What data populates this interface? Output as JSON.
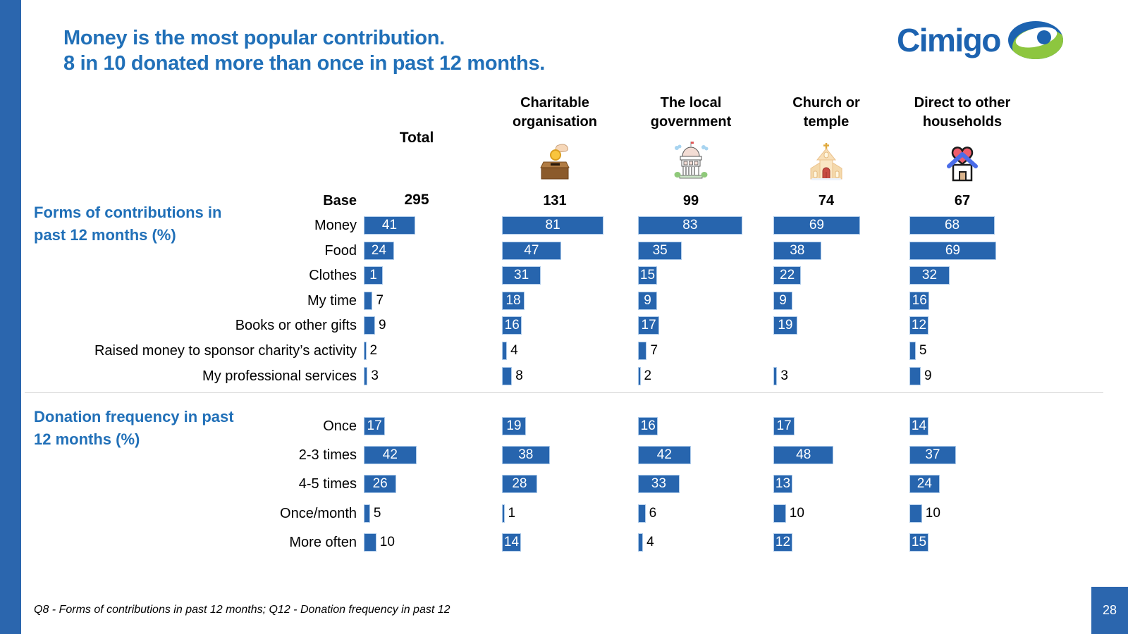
{
  "slide": {
    "title_line1": "Money is the most popular contribution.",
    "title_line2": "8 in 10 donated more than once in past 12 months.",
    "footer": "Q8 - Forms of contributions in past 12 months; Q12 - Donation frequency in past 12",
    "page_number": "28",
    "logo_text": "Cimigo"
  },
  "colors": {
    "bar_blue": "#2765AE",
    "accent_blue": "#2B66AE",
    "title_blue": "#2170B8",
    "logo_blue": "#1D63B0",
    "logo_green": "#8DC63F"
  },
  "chart_data": {
    "type": "bar",
    "orientation": "horizontal",
    "unit": "%",
    "base_label": "Base",
    "columns": [
      {
        "label": "Total",
        "base": "295",
        "icon": null
      },
      {
        "label": "Charitable organisation",
        "base": "131",
        "icon": "donation-box-icon"
      },
      {
        "label": "The local government",
        "base": "99",
        "icon": "government-building-icon"
      },
      {
        "label": "Church or temple",
        "base": "74",
        "icon": "church-icon"
      },
      {
        "label": "Direct to other households",
        "base": "67",
        "icon": "house-heart-icon"
      }
    ],
    "sections": [
      {
        "title": "Forms of contributions in past 12 months (%)",
        "rows": [
          {
            "label": "Money",
            "values": [
              41,
              81,
              83,
              69,
              68
            ],
            "label_inside": [
              true,
              true,
              true,
              true,
              true
            ]
          },
          {
            "label": "Food",
            "values": [
              24,
              47,
              35,
              38,
              69
            ],
            "label_inside": [
              true,
              true,
              true,
              true,
              true
            ]
          },
          {
            "label": "Clothes",
            "values": [
              1,
              31,
              15,
              22,
              32
            ],
            "label_inside": [
              true,
              true,
              true,
              true,
              true
            ]
          },
          {
            "label": "My time",
            "values": [
              7,
              18,
              9,
              9,
              16
            ],
            "label_inside": [
              false,
              true,
              true,
              true,
              true
            ]
          },
          {
            "label": "Books or other gifts",
            "values": [
              9,
              16,
              17,
              19,
              12
            ],
            "label_inside": [
              false,
              true,
              true,
              true,
              true
            ]
          },
          {
            "label": "Raised money to sponsor charity’s activity",
            "values": [
              2,
              4,
              7,
              null,
              5
            ],
            "label_inside": [
              false,
              false,
              false,
              null,
              false
            ]
          },
          {
            "label": "My professional services",
            "values": [
              3,
              8,
              2,
              3,
              9
            ],
            "label_inside": [
              false,
              false,
              false,
              false,
              false
            ]
          }
        ]
      },
      {
        "title": "Donation frequency in past 12 months (%)",
        "rows": [
          {
            "label": "Once",
            "values": [
              17,
              19,
              16,
              17,
              14
            ],
            "label_inside": [
              true,
              true,
              true,
              true,
              true
            ]
          },
          {
            "label": "2-3 times",
            "values": [
              42,
              38,
              42,
              48,
              37
            ],
            "label_inside": [
              true,
              true,
              true,
              true,
              true
            ]
          },
          {
            "label": "4-5 times",
            "values": [
              26,
              28,
              33,
              13,
              24
            ],
            "label_inside": [
              true,
              true,
              true,
              true,
              true
            ]
          },
          {
            "label": "Once/month",
            "values": [
              5,
              1,
              6,
              10,
              10
            ],
            "label_inside": [
              false,
              false,
              false,
              false,
              false
            ]
          },
          {
            "label": "More often",
            "values": [
              10,
              14,
              4,
              12,
              15
            ],
            "label_inside": [
              false,
              true,
              false,
              true,
              true
            ]
          }
        ]
      }
    ]
  }
}
